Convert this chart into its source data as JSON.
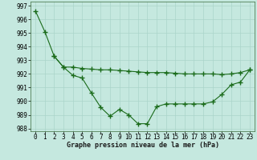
{
  "line1_x": [
    0,
    1,
    2,
    3,
    4,
    5,
    6,
    7,
    8,
    9,
    10,
    11,
    12,
    13,
    14,
    15,
    16,
    17,
    18,
    19,
    20,
    21,
    22,
    23
  ],
  "line1_y": [
    996.6,
    995.1,
    993.3,
    992.5,
    991.9,
    991.7,
    990.6,
    989.55,
    988.9,
    989.4,
    989.0,
    988.35,
    988.35,
    989.6,
    989.8,
    989.8,
    989.8,
    989.8,
    989.8,
    989.95,
    990.5,
    991.2,
    991.4,
    992.3
  ],
  "line2_x": [
    2,
    3,
    4,
    5,
    6,
    7,
    8,
    9,
    10,
    11,
    12,
    13,
    14,
    15,
    16,
    17,
    18,
    19,
    20,
    21,
    22,
    23
  ],
  "line2_y": [
    993.3,
    992.5,
    992.5,
    992.4,
    992.35,
    992.3,
    992.3,
    992.25,
    992.2,
    992.15,
    992.1,
    992.1,
    992.1,
    992.05,
    992.0,
    992.0,
    992.0,
    992.0,
    991.95,
    992.0,
    992.1,
    992.3
  ],
  "line_color": "#1a6b1a",
  "bg_color": "#c5e8df",
  "grid_color": "#aad4ca",
  "xlabel": "Graphe pression niveau de la mer (hPa)",
  "ylim": [
    987.8,
    997.3
  ],
  "xlim": [
    -0.5,
    23.5
  ],
  "yticks": [
    988,
    989,
    990,
    991,
    992,
    993,
    994,
    995,
    996,
    997
  ],
  "xticks": [
    0,
    1,
    2,
    3,
    4,
    5,
    6,
    7,
    8,
    9,
    10,
    11,
    12,
    13,
    14,
    15,
    16,
    17,
    18,
    19,
    20,
    21,
    22,
    23
  ],
  "xlabel_fontsize": 6.0,
  "tick_fontsize": 5.5
}
